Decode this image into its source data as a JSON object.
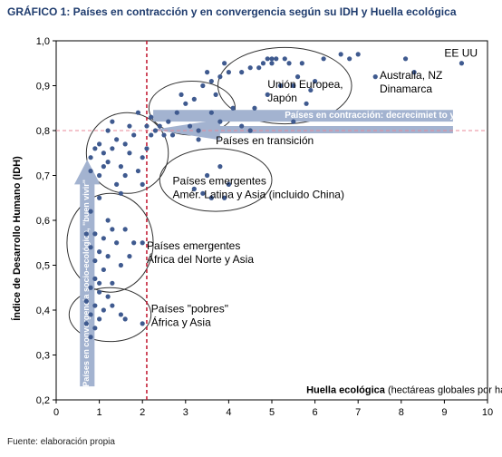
{
  "title": "GRÁFICO 1: Países en contracción y en convergencia según su IDH y Huella ecológica",
  "source": "Fuente: elaboración propia",
  "chart_data": {
    "type": "scatter",
    "title": "Gráfico 1: Países en contracción y en convergencia según su IDH y Huella ecológica",
    "xlabel_bold": "Huella ecológica",
    "xlabel_rest": "(hectáreas globales por habitante)",
    "ylabel": "Índice de Desarrollo Humano (IDH)",
    "xlim": [
      0,
      10
    ],
    "ylim": [
      0.2,
      1.0
    ],
    "x_ticks": [
      0,
      1,
      2,
      3,
      4,
      5,
      6,
      7,
      8,
      9,
      10
    ],
    "y_ticks": [
      "0,2",
      "0,3",
      "0,4",
      "0,5",
      "0,6",
      "0,7",
      "0,8",
      "0,9",
      "1,0"
    ],
    "y_tick_values": [
      0.2,
      0.3,
      0.4,
      0.5,
      0.6,
      0.7,
      0.8,
      0.9,
      1.0
    ],
    "reference_lines": {
      "x": 2.1,
      "y": 0.8
    },
    "point_color": "#3f5a8f",
    "arrow_color": "#a3b3d0",
    "line_color": "#c0142d",
    "arrows": {
      "contraction": "Países en contracción: decrecimiet to y ajuste",
      "convergence": "Países en convergencia socio-ecológica, \"buen vivir\""
    },
    "groups": [
      {
        "label": "EE UU"
      },
      {
        "label": "Australia, NZ\nDinamarca"
      },
      {
        "label": "Unión Europea,\nJapón"
      },
      {
        "label": "Países en transición"
      },
      {
        "label": "Países emergentes\nAmér. Latina y Asia (incluido China)"
      },
      {
        "label": "Países emergentes\nÁfrica del Norte y Asia"
      },
      {
        "label": "Países \"pobres\"\nÁfrica y Asia"
      }
    ],
    "points": [
      [
        9.4,
        0.95
      ],
      [
        8.1,
        0.96
      ],
      [
        8.3,
        0.93
      ],
      [
        7.4,
        0.92
      ],
      [
        7.0,
        0.97
      ],
      [
        6.8,
        0.96
      ],
      [
        6.6,
        0.97
      ],
      [
        6.2,
        0.96
      ],
      [
        5.7,
        0.95
      ],
      [
        4.9,
        0.96
      ],
      [
        5.0,
        0.96
      ],
      [
        5.1,
        0.96
      ],
      [
        5.0,
        0.95
      ],
      [
        4.8,
        0.95
      ],
      [
        4.7,
        0.94
      ],
      [
        5.3,
        0.96
      ],
      [
        5.4,
        0.95
      ],
      [
        4.5,
        0.94
      ],
      [
        4.3,
        0.93
      ],
      [
        4.0,
        0.93
      ],
      [
        3.8,
        0.92
      ],
      [
        3.6,
        0.91
      ],
      [
        3.5,
        0.93
      ],
      [
        3.9,
        0.95
      ],
      [
        5.5,
        0.9
      ],
      [
        5.6,
        0.92
      ],
      [
        6.0,
        0.91
      ],
      [
        5.9,
        0.89
      ],
      [
        5.2,
        0.9
      ],
      [
        4.9,
        0.88
      ],
      [
        5.8,
        0.86
      ],
      [
        5.5,
        0.82
      ],
      [
        4.6,
        0.85
      ],
      [
        3.7,
        0.88
      ],
      [
        3.2,
        0.87
      ],
      [
        3.0,
        0.86
      ],
      [
        2.8,
        0.84
      ],
      [
        2.6,
        0.82
      ],
      [
        2.4,
        0.81
      ],
      [
        2.3,
        0.8
      ],
      [
        2.2,
        0.83
      ],
      [
        3.3,
        0.8
      ],
      [
        3.8,
        0.82
      ],
      [
        4.1,
        0.85
      ],
      [
        4.3,
        0.81
      ],
      [
        4.5,
        0.8
      ],
      [
        3.4,
        0.9
      ],
      [
        2.9,
        0.88
      ],
      [
        3.6,
        0.84
      ],
      [
        3.3,
        0.78
      ],
      [
        2.5,
        0.79
      ],
      [
        2.7,
        0.79
      ],
      [
        3.1,
        0.81
      ],
      [
        1.9,
        0.84
      ],
      [
        1.8,
        0.79
      ],
      [
        1.6,
        0.77
      ],
      [
        1.4,
        0.78
      ],
      [
        1.3,
        0.76
      ],
      [
        1.1,
        0.75
      ],
      [
        1.0,
        0.77
      ],
      [
        0.9,
        0.76
      ],
      [
        1.2,
        0.73
      ],
      [
        0.8,
        0.74
      ],
      [
        1.5,
        0.72
      ],
      [
        1.7,
        0.75
      ],
      [
        1.9,
        0.71
      ],
      [
        1.0,
        0.7
      ],
      [
        0.8,
        0.71
      ],
      [
        1.4,
        0.68
      ],
      [
        1.6,
        0.7
      ],
      [
        2.0,
        0.74
      ],
      [
        2.1,
        0.76
      ],
      [
        2.2,
        0.79
      ],
      [
        2.1,
        0.81
      ],
      [
        1.7,
        0.81
      ],
      [
        1.2,
        0.8
      ],
      [
        2.0,
        0.68
      ],
      [
        1.5,
        0.66
      ],
      [
        1.1,
        0.72
      ],
      [
        1.3,
        0.82
      ],
      [
        3.8,
        0.72
      ],
      [
        3.5,
        0.7
      ],
      [
        3.2,
        0.67
      ],
      [
        3.6,
        0.65
      ],
      [
        3.9,
        0.65
      ],
      [
        4.0,
        0.68
      ],
      [
        3.4,
        0.66
      ],
      [
        1.0,
        0.65
      ],
      [
        0.8,
        0.62
      ],
      [
        1.2,
        0.6
      ],
      [
        0.9,
        0.57
      ],
      [
        1.1,
        0.56
      ],
      [
        1.3,
        0.58
      ],
      [
        1.4,
        0.55
      ],
      [
        0.8,
        0.54
      ],
      [
        1.0,
        0.53
      ],
      [
        1.2,
        0.52
      ],
      [
        0.9,
        0.51
      ],
      [
        1.5,
        0.5
      ],
      [
        1.8,
        0.55
      ],
      [
        2.0,
        0.55
      ],
      [
        1.6,
        0.58
      ],
      [
        0.7,
        0.57
      ],
      [
        1.7,
        0.52
      ],
      [
        1.1,
        0.49
      ],
      [
        0.9,
        0.47
      ],
      [
        1.3,
        0.46
      ],
      [
        0.8,
        0.45
      ],
      [
        1.0,
        0.44
      ],
      [
        1.2,
        0.43
      ],
      [
        0.7,
        0.42
      ],
      [
        0.9,
        0.41
      ],
      [
        1.1,
        0.4
      ],
      [
        0.8,
        0.39
      ],
      [
        1.0,
        0.38
      ],
      [
        0.7,
        0.37
      ],
      [
        0.9,
        0.36
      ],
      [
        0.8,
        0.34
      ],
      [
        1.5,
        0.39
      ],
      [
        1.6,
        0.38
      ],
      [
        1.3,
        0.41
      ],
      [
        2.0,
        0.37
      ],
      [
        1.0,
        0.46
      ]
    ]
  }
}
